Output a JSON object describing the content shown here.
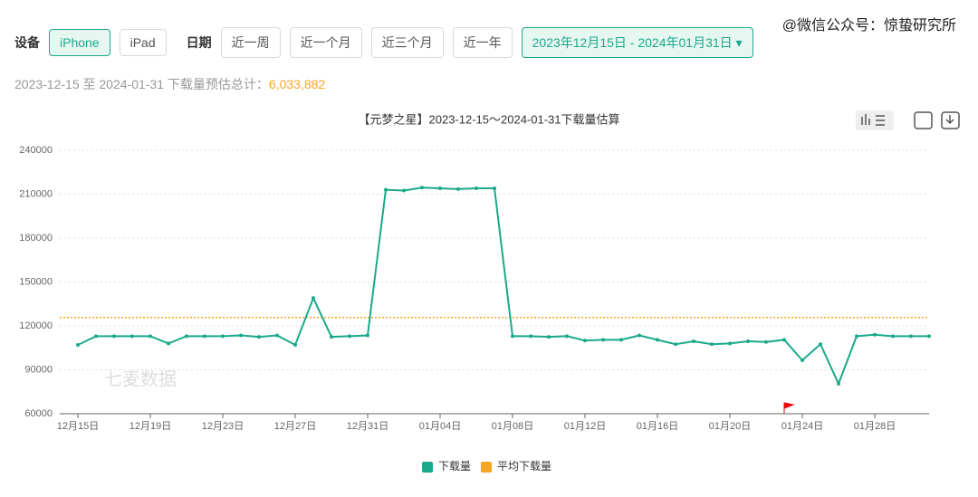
{
  "filters": {
    "device_label": "设备",
    "devices": [
      "iPhone",
      "iPad"
    ],
    "date_label": "日期",
    "ranges": [
      "近一周",
      "近一个月",
      "近三个月",
      "近一年"
    ],
    "date_range": "2023年12月15日 - 2024年01月31日"
  },
  "summary": {
    "text": "2023-12-15 至 2024-01-31 下载量预估总计：",
    "total": "6,033,882"
  },
  "watermark": "@微信公众号：惊蛰研究所",
  "chart_data": {
    "type": "line",
    "title": "【元梦之星】2023-12-15～2024-01-31下载量估算",
    "watermark": "七麦数据",
    "categories": [
      "12月15日",
      null,
      null,
      null,
      "12月19日",
      null,
      null,
      null,
      "12月23日",
      null,
      null,
      null,
      "12月27日",
      null,
      null,
      null,
      "12月31日",
      null,
      null,
      null,
      "01月04日",
      null,
      null,
      null,
      "01月08日",
      null,
      null,
      null,
      "01月12日",
      null,
      null,
      null,
      "01月16日",
      null,
      null,
      null,
      "01月20日",
      null,
      null,
      null,
      "01月24日",
      null,
      null,
      null,
      "01月28日",
      null,
      null,
      null
    ],
    "series": [
      {
        "name": "下载量",
        "color": "#1aa98a",
        "values": [
          107000,
          113000,
          113000,
          113000,
          113000,
          108000,
          113000,
          113000,
          113000,
          113500,
          112500,
          113500,
          107000,
          139000,
          112500,
          113000,
          113500,
          213000,
          212500,
          214500,
          214000,
          213500,
          214000,
          214000,
          113000,
          113000,
          112500,
          113000,
          110000,
          110500,
          110500,
          113500,
          110500,
          107500,
          109500,
          107500,
          108000,
          109500,
          109000,
          110500,
          96500,
          107500,
          80500,
          113000,
          114000,
          113000,
          113000,
          113000
        ]
      }
    ],
    "average": {
      "name": "平均下载量",
      "color": "#f5a623",
      "value": 125706
    },
    "ylim": [
      60000,
      240000
    ],
    "yticks": [
      60000,
      90000,
      120000,
      150000,
      180000,
      210000,
      240000
    ],
    "grid": true
  }
}
